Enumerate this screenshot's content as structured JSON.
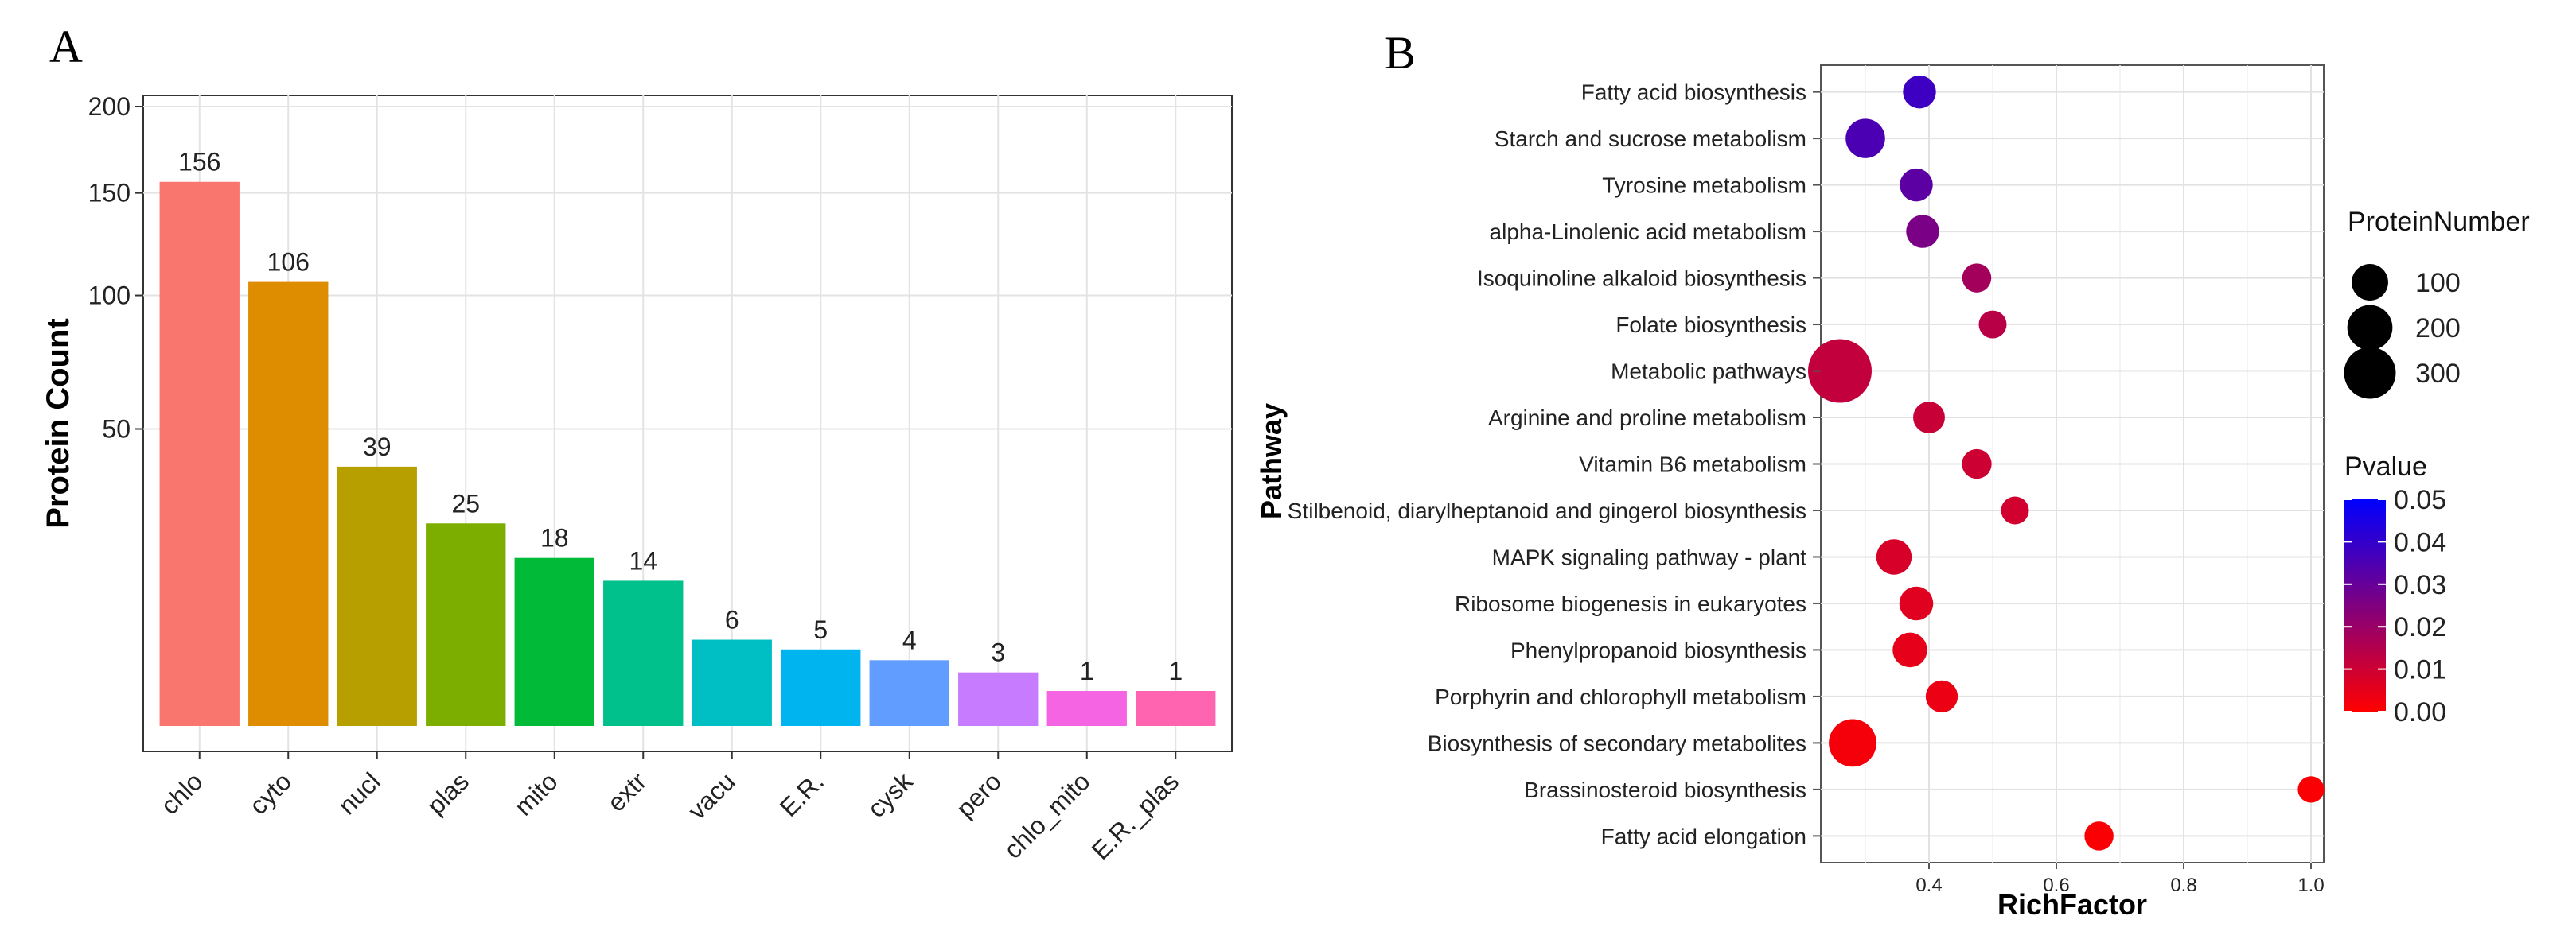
{
  "panels": {
    "a": "A",
    "b": "B"
  },
  "chart_data": [
    {
      "type": "bar",
      "ylabel": "Protein Count",
      "xlabel": "",
      "yscale": "sqrt",
      "ylim": [
        0,
        200
      ],
      "yticks": [
        50,
        100,
        150,
        200
      ],
      "grid": true,
      "categories": [
        "chlo",
        "cyto",
        "nucl",
        "plas",
        "mito",
        "extr",
        "vacu",
        "E.R.",
        "cysk",
        "pero",
        "chlo_mito",
        "E.R._plas"
      ],
      "values": [
        156,
        106,
        39,
        25,
        18,
        14,
        6,
        5,
        4,
        3,
        1,
        1
      ],
      "colors": [
        "#F8766D",
        "#DE8C00",
        "#B79F00",
        "#7CAE00",
        "#00BA38",
        "#00C08B",
        "#00BFC4",
        "#00B4F0",
        "#619CFF",
        "#C77CFF",
        "#F564E3",
        "#FF64B0"
      ]
    },
    {
      "type": "scatter",
      "xlabel": "RichFactor",
      "ylabel": "Pathway",
      "xlim": [
        0.23,
        1.02
      ],
      "xticks": [
        0.4,
        0.6,
        0.8,
        1.0
      ],
      "xtick_labels": [
        "0.4",
        "0.6",
        "0.8",
        "1.0"
      ],
      "grid": true,
      "pathways": [
        "Fatty acid biosynthesis",
        "Starch and sucrose metabolism",
        "Tyrosine metabolism",
        "alpha-Linolenic acid metabolism",
        "Isoquinoline alkaloid biosynthesis",
        "Folate biosynthesis",
        "Metabolic pathways",
        "Arginine and proline metabolism",
        "Vitamin B6 metabolism",
        "Stilbenoid, diarylheptanoid and gingerol biosynthesis",
        "MAPK signaling pathway - plant",
        "Ribosome biogenesis in eukaryotes",
        "Phenylpropanoid biosynthesis",
        "Porphyrin and chlorophyll metabolism",
        "Biosynthesis of secondary metabolites",
        "Brassinosteroid biosynthesis",
        "Fatty acid elongation"
      ],
      "rich_factor": [
        0.385,
        0.3,
        0.38,
        0.39,
        0.475,
        0.5,
        0.26,
        0.4,
        0.475,
        0.535,
        0.345,
        0.38,
        0.37,
        0.42,
        0.28,
        1.0,
        0.667
      ],
      "protein_number": [
        45,
        90,
        45,
        45,
        25,
        20,
        400,
        38,
        28,
        20,
        60,
        50,
        55,
        40,
        170,
        15,
        25
      ],
      "pvalue": [
        0.038,
        0.035,
        0.032,
        0.026,
        0.018,
        0.014,
        0.012,
        0.011,
        0.01,
        0.009,
        0.008,
        0.006,
        0.005,
        0.004,
        0.002,
        0.001,
        0.001
      ],
      "size_legend": {
        "title": "ProteinNumber",
        "values": [
          100,
          200,
          300
        ],
        "labels": [
          "100",
          "200",
          "300"
        ]
      },
      "color_legend": {
        "title": "Pvalue",
        "ticks": [
          0.05,
          0.04,
          0.03,
          0.02,
          0.01,
          0.0
        ],
        "labels": [
          "0.05",
          "0.04",
          "0.03",
          "0.02",
          "0.01",
          "0.00"
        ],
        "low_color": "#FF0000",
        "high_color": "#0000FF"
      }
    }
  ]
}
